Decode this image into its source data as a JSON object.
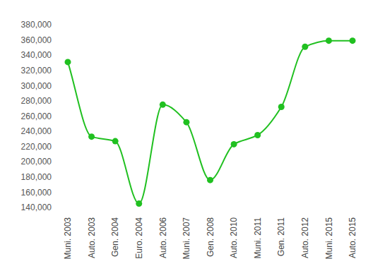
{
  "chart_data": {
    "type": "line",
    "categories": [
      "Muni. 2003",
      "Auto. 2003",
      "Gen. 2004",
      "Euro. 2004",
      "Auto. 2006",
      "Muni. 2007",
      "Gen. 2008",
      "Auto. 2010",
      "Muni. 2011",
      "Gen. 2011",
      "Auto. 2012",
      "Muni. 2015",
      "Auto. 2015"
    ],
    "values": [
      331000,
      233000,
      227000,
      145000,
      275000,
      252000,
      176000,
      223000,
      235000,
      272000,
      351000,
      359000,
      359000
    ],
    "color": "#20c020",
    "marker": "circle",
    "grid": false,
    "ylim": [
      140000,
      380000
    ],
    "yticks": [
      {
        "value": 140000,
        "label": "140,000"
      },
      {
        "value": 160000,
        "label": "160,000"
      },
      {
        "value": 180000,
        "label": "180,000"
      },
      {
        "value": 200000,
        "label": "200,000"
      },
      {
        "value": 220000,
        "label": "220,000"
      },
      {
        "value": 240000,
        "label": "240,000"
      },
      {
        "value": 260000,
        "label": "260,000"
      },
      {
        "value": 280000,
        "label": "280,000"
      },
      {
        "value": 300000,
        "label": "300,000"
      },
      {
        "value": 320000,
        "label": "320,000"
      },
      {
        "value": 340000,
        "label": "340,000"
      },
      {
        "value": 360000,
        "label": "360,000"
      },
      {
        "value": 380000,
        "label": "380,000"
      }
    ]
  }
}
